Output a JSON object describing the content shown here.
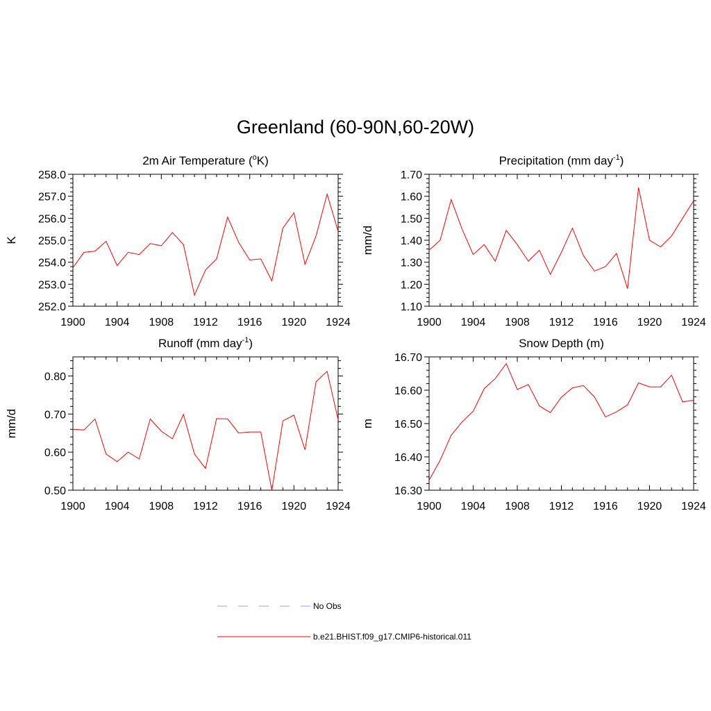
{
  "figure": {
    "title": "Greenland (60-90N,60-20W)"
  },
  "legend": {
    "entries": [
      {
        "label": "No Obs",
        "color": "#9999ff",
        "style": "dashed"
      },
      {
        "label": "b.e21.BHIST.f09_g17.CMIP6-historical.011",
        "color": "#ff0000",
        "style": "solid"
      }
    ]
  },
  "chart_data": [
    {
      "type": "line",
      "title": "2m Air Temperature (",
      "title_sup": "o",
      "title_after": "K)",
      "ylabel": "K",
      "xlim": [
        1900,
        1924
      ],
      "ylim": [
        252.0,
        258.0
      ],
      "x_ticks": [
        "1900",
        "1904",
        "1908",
        "1912",
        "1916",
        "1920",
        "1924"
      ],
      "y_ticks": [
        "252.0",
        "253.0",
        "254.0",
        "255.0",
        "256.0",
        "257.0",
        "258.0"
      ],
      "x": [
        1900,
        1901,
        1902,
        1903,
        1904,
        1905,
        1906,
        1907,
        1908,
        1909,
        1910,
        1911,
        1912,
        1913,
        1914,
        1915,
        1916,
        1917,
        1918,
        1919,
        1920,
        1921,
        1922,
        1923,
        1924
      ],
      "series": [
        {
          "values": [
            253.75,
            254.45,
            254.5,
            254.95,
            253.85,
            254.45,
            254.35,
            254.85,
            254.75,
            255.35,
            254.8,
            252.5,
            253.65,
            254.15,
            256.05,
            254.9,
            254.1,
            254.15,
            253.15,
            255.55,
            256.25,
            253.9,
            255.2,
            257.1,
            255.4
          ],
          "color": "#ff0000"
        }
      ]
    },
    {
      "type": "line",
      "title": "Precipitation (mm day",
      "title_sup": "-1",
      "title_after": ")",
      "ylabel": "mm/d",
      "xlim": [
        1900,
        1924
      ],
      "ylim": [
        1.1,
        1.7
      ],
      "x_ticks": [
        "1900",
        "1904",
        "1908",
        "1912",
        "1916",
        "1920",
        "1924"
      ],
      "y_ticks": [
        "1.10",
        "1.20",
        "1.30",
        "1.40",
        "1.50",
        "1.60",
        "1.70"
      ],
      "x": [
        1900,
        1901,
        1902,
        1903,
        1904,
        1905,
        1906,
        1907,
        1908,
        1909,
        1910,
        1911,
        1912,
        1913,
        1914,
        1915,
        1916,
        1917,
        1918,
        1919,
        1920,
        1921,
        1922,
        1923,
        1924
      ],
      "series": [
        {
          "values": [
            1.355,
            1.4,
            1.585,
            1.45,
            1.335,
            1.38,
            1.305,
            1.445,
            1.38,
            1.305,
            1.355,
            1.245,
            1.345,
            1.455,
            1.33,
            1.26,
            1.28,
            1.34,
            1.18,
            1.64,
            1.4,
            1.37,
            1.42,
            1.5,
            1.58
          ],
          "color": "#ff0000"
        }
      ]
    },
    {
      "type": "line",
      "title": "Runoff (mm day",
      "title_sup": "-1",
      "title_after": ")",
      "ylabel": "mm/d",
      "xlim": [
        1900,
        1924
      ],
      "ylim": [
        0.5,
        0.85
      ],
      "x_ticks": [
        "1900",
        "1904",
        "1908",
        "1912",
        "1916",
        "1920",
        "1924"
      ],
      "y_ticks": [
        "0.50",
        "0.60",
        "0.70",
        "0.80"
      ],
      "x": [
        1900,
        1901,
        1902,
        1903,
        1904,
        1905,
        1906,
        1907,
        1908,
        1909,
        1910,
        1911,
        1912,
        1913,
        1914,
        1915,
        1916,
        1917,
        1918,
        1919,
        1920,
        1921,
        1922,
        1923,
        1924
      ],
      "series": [
        {
          "values": [
            0.66,
            0.658,
            0.687,
            0.595,
            0.575,
            0.6,
            0.582,
            0.687,
            0.655,
            0.635,
            0.699,
            0.595,
            0.557,
            0.688,
            0.687,
            0.65,
            0.653,
            0.653,
            0.5,
            0.682,
            0.697,
            0.606,
            0.785,
            0.812,
            0.685
          ],
          "color": "#ff0000"
        }
      ]
    },
    {
      "type": "line",
      "title": "Snow Depth (m)",
      "title_sup": "",
      "title_after": "",
      "ylabel": "m",
      "xlim": [
        1900,
        1924
      ],
      "ylim": [
        16.3,
        16.7
      ],
      "x_ticks": [
        "1900",
        "1904",
        "1908",
        "1912",
        "1916",
        "1920",
        "1924"
      ],
      "y_ticks": [
        "16.30",
        "16.40",
        "16.50",
        "16.60",
        "16.70"
      ],
      "x": [
        1900,
        1901,
        1902,
        1903,
        1904,
        1905,
        1906,
        1907,
        1908,
        1909,
        1910,
        1911,
        1912,
        1913,
        1914,
        1915,
        1916,
        1917,
        1918,
        1919,
        1920,
        1921,
        1922,
        1923,
        1924
      ],
      "series": [
        {
          "values": [
            16.33,
            16.39,
            16.465,
            16.505,
            16.537,
            16.605,
            16.635,
            16.68,
            16.602,
            16.617,
            16.553,
            16.533,
            16.579,
            16.607,
            16.614,
            16.58,
            16.52,
            16.535,
            16.556,
            16.622,
            16.61,
            16.61,
            16.645,
            16.565,
            16.57
          ],
          "color": "#ff0000"
        }
      ]
    }
  ]
}
